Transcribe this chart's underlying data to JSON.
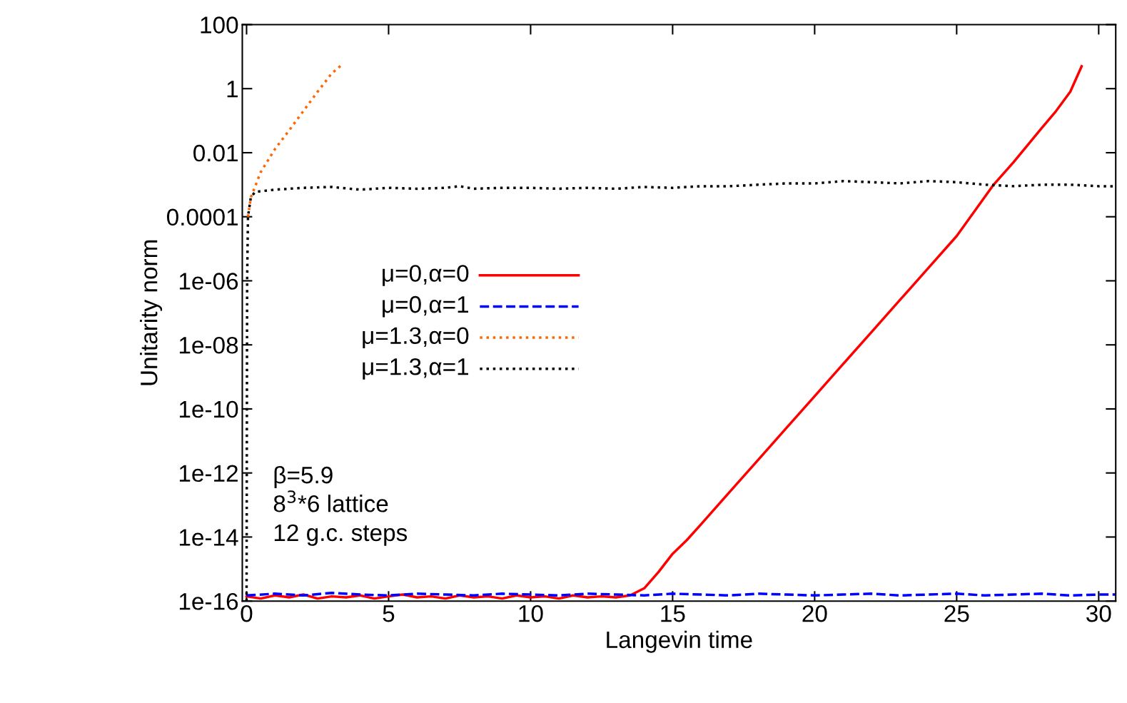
{
  "chart_data": {
    "type": "line",
    "xlabel": "Langevin time",
    "ylabel": "Unitarity norm",
    "log": "y",
    "grid": false,
    "legend": "left",
    "xlim": [
      -0.15,
      30.6
    ],
    "xticks": [
      0,
      5,
      10,
      15,
      20,
      25,
      30
    ],
    "ylim": [
      1e-16,
      100
    ],
    "yticks": [
      {
        "value": 100,
        "label": "100"
      },
      {
        "value": 1,
        "label": "1"
      },
      {
        "value": 0.01,
        "label": "0.01"
      },
      {
        "value": 0.0001,
        "label": "0.0001"
      },
      {
        "value": 1e-06,
        "label": "1e-06"
      },
      {
        "value": 1e-08,
        "label": "1e-08"
      },
      {
        "value": 1e-10,
        "label": "1e-10"
      },
      {
        "value": 1e-12,
        "label": "1e-12"
      },
      {
        "value": 1e-14,
        "label": "1e-14"
      },
      {
        "value": 1e-16,
        "label": "1e-16"
      }
    ],
    "annotations": [
      "β=5.9",
      "8$^{3}$*6 lattice",
      "12 g.c. steps"
    ],
    "series": [
      {
        "name": "μ=0,α=0",
        "color": "#ff0000",
        "line_style": "solid",
        "x": [
          0,
          0.5,
          1,
          1.5,
          2,
          2.5,
          3,
          3.5,
          4,
          4.5,
          5,
          5.5,
          6,
          6.5,
          7,
          7.5,
          8,
          8.5,
          9,
          9.5,
          10,
          10.5,
          11,
          11.5,
          12,
          12.5,
          13,
          13.5,
          14,
          14.5,
          15,
          15.5,
          16,
          17,
          18,
          19,
          20,
          21,
          22,
          23,
          24,
          25,
          26.3,
          27,
          28,
          28.5,
          29,
          29.4
        ],
        "values": [
          1.4e-16,
          1.2e-16,
          1.5e-16,
          1.3e-16,
          1.6e-16,
          1.2e-16,
          1.4e-16,
          1.3e-16,
          1.5e-16,
          1.2e-16,
          1.4e-16,
          1.6e-16,
          1.3e-16,
          1.4e-16,
          1.2e-16,
          1.5e-16,
          1.3e-16,
          1.4e-16,
          1.2e-16,
          1.5e-16,
          1.3e-16,
          1.4e-16,
          1.2e-16,
          1.5e-16,
          1.3e-16,
          1.4e-16,
          1.3e-16,
          1.5e-16,
          2.5e-16,
          8e-16,
          3e-15,
          8e-15,
          2.5e-14,
          2.5e-13,
          2.5e-12,
          2.5e-11,
          2.5e-10,
          2.5e-09,
          2.5e-08,
          2.5e-07,
          2.5e-06,
          2.5e-05,
          0.001,
          0.005,
          0.06,
          0.2,
          0.8,
          5
        ]
      },
      {
        "name": "μ=0,α=1",
        "color": "#0000ff",
        "line_style": "dashed",
        "x": [
          0,
          1,
          2,
          3,
          4,
          5,
          6,
          7,
          8,
          9,
          10,
          11,
          12,
          13,
          14,
          15,
          16,
          17,
          18,
          19,
          20,
          21,
          22,
          23,
          24,
          25,
          26,
          27,
          28,
          29,
          30,
          30.6
        ],
        "values": [
          1.5e-16,
          1.7e-16,
          1.5e-16,
          1.8e-16,
          1.6e-16,
          1.5e-16,
          1.7e-16,
          1.6e-16,
          1.5e-16,
          1.7e-16,
          1.6e-16,
          1.5e-16,
          1.7e-16,
          1.6e-16,
          1.5e-16,
          1.7e-16,
          1.6e-16,
          1.5e-16,
          1.7e-16,
          1.6e-16,
          1.5e-16,
          1.6e-16,
          1.7e-16,
          1.5e-16,
          1.6e-16,
          1.7e-16,
          1.5e-16,
          1.6e-16,
          1.7e-16,
          1.5e-16,
          1.6e-16,
          1.6e-16
        ]
      },
      {
        "name": "μ=1.3,α=0",
        "color": "#ff6600",
        "line_style": "dotted",
        "x": [
          0.05,
          0.15,
          0.5,
          1,
          1.5,
          2,
          2.5,
          3,
          3.4
        ],
        "values": [
          0.0001,
          0.0004,
          0.0025,
          0.013,
          0.05,
          0.2,
          0.8,
          3,
          6
        ]
      },
      {
        "name": "μ=1.3,α=1",
        "color": "#000000",
        "line_style": "dotted",
        "x": [
          0,
          0.02,
          0.05,
          0.15,
          0.3,
          1,
          2,
          3,
          4,
          5,
          6,
          7,
          7.5,
          8,
          9,
          10,
          11,
          12,
          13,
          14,
          15,
          16,
          17,
          18,
          19,
          20,
          21,
          22,
          23,
          24,
          25,
          26,
          27,
          28,
          29,
          30,
          30.6
        ],
        "values": [
          1e-16,
          1e-06,
          0.0001,
          0.0004,
          0.0006,
          0.0007,
          0.0008,
          0.00085,
          0.0007,
          0.0008,
          0.00075,
          0.0008,
          0.0009,
          0.00075,
          0.0008,
          0.0008,
          0.00075,
          0.0008,
          0.00075,
          0.00085,
          0.0008,
          0.0009,
          0.0009,
          0.001,
          0.0011,
          0.0011,
          0.0013,
          0.0012,
          0.0011,
          0.0013,
          0.0012,
          0.001,
          0.0009,
          0.001,
          0.001,
          0.0009,
          0.0009
        ]
      }
    ]
  }
}
